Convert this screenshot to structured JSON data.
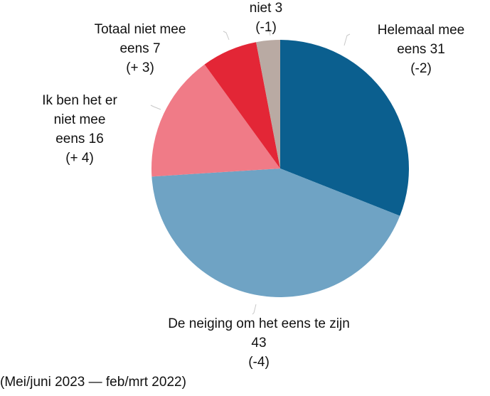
{
  "chart_data": {
    "type": "pie",
    "categories": [
      "Helemaal mee eens",
      "De neiging om het eens te zijn",
      "Ik ben het er niet mee eens",
      "Totaal niet mee eens",
      "niet"
    ],
    "values": [
      31,
      43,
      16,
      7,
      3
    ],
    "changes": [
      "(-2)",
      "(-4)",
      "(+ 4)",
      "(+ 3)",
      "(-1)"
    ],
    "colors": [
      "#0b5f8f",
      "#6fa3c4",
      "#f07b87",
      "#e32636",
      "#b9aaa3"
    ],
    "footnote": "(Mei/juni 2023 — feb/mrt 2022)"
  }
}
